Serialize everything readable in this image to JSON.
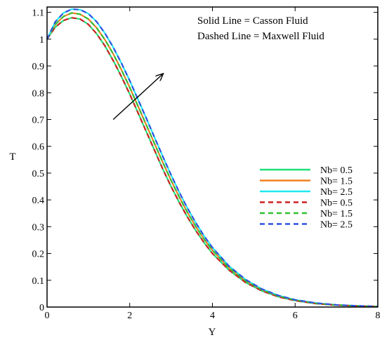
{
  "chart_data": {
    "type": "line",
    "title": "",
    "xlabel": "Y",
    "ylabel": "T",
    "xlim": [
      0,
      8
    ],
    "ylim": [
      0,
      1.12
    ],
    "x_ticks": [
      "0",
      "2",
      "4",
      "6",
      "8"
    ],
    "y_ticks": [
      "0",
      "0.1",
      "0.2",
      "0.3",
      "0.4",
      "0.5",
      "0.6",
      "0.7",
      "0.8",
      "0.9",
      "1",
      "1.1"
    ],
    "grid": false,
    "legend_position": "center-right",
    "annotations": [
      "Solid Line = Casson Fluid",
      "Dashed Line = Maxwell Fluid"
    ],
    "arrow": {
      "from": [
        1.6,
        0.7
      ],
      "to": [
        2.8,
        0.87
      ]
    },
    "x": [
      0,
      0.2,
      0.4,
      0.6,
      0.8,
      1.0,
      1.2,
      1.4,
      1.6,
      1.8,
      2.0,
      2.2,
      2.4,
      2.6,
      2.8,
      3.0,
      3.2,
      3.4,
      3.6,
      3.8,
      4.0,
      4.4,
      4.8,
      5.2,
      5.6,
      6.0,
      6.5,
      7.0,
      7.5,
      8.0
    ],
    "series": [
      {
        "name": "Nb= 0.5",
        "style": "solid",
        "color": "#1ee07a",
        "values": [
          1.0,
          1.045,
          1.07,
          1.08,
          1.075,
          1.055,
          1.02,
          0.975,
          0.92,
          0.86,
          0.795,
          0.725,
          0.655,
          0.585,
          0.515,
          0.45,
          0.39,
          0.335,
          0.285,
          0.24,
          0.2,
          0.138,
          0.092,
          0.06,
          0.038,
          0.024,
          0.013,
          0.007,
          0.004,
          0.002
        ]
      },
      {
        "name": "Nb= 1.5",
        "style": "solid",
        "color": "#f08020",
        "values": [
          1.0,
          1.055,
          1.085,
          1.098,
          1.093,
          1.075,
          1.042,
          0.998,
          0.945,
          0.885,
          0.82,
          0.75,
          0.68,
          0.61,
          0.54,
          0.473,
          0.41,
          0.352,
          0.3,
          0.253,
          0.212,
          0.146,
          0.098,
          0.064,
          0.041,
          0.026,
          0.014,
          0.0075,
          0.004,
          0.002
        ]
      },
      {
        "name": "Nb= 2.5",
        "style": "solid",
        "color": "#20e8f0",
        "values": [
          1.0,
          1.065,
          1.098,
          1.112,
          1.11,
          1.095,
          1.065,
          1.022,
          0.97,
          0.91,
          0.845,
          0.775,
          0.705,
          0.633,
          0.562,
          0.493,
          0.428,
          0.368,
          0.314,
          0.265,
          0.222,
          0.153,
          0.103,
          0.067,
          0.043,
          0.027,
          0.015,
          0.008,
          0.0045,
          0.002
        ]
      },
      {
        "name": "Nb= 0.5",
        "style": "dashed",
        "color": "#d02020",
        "values": [
          1.0,
          1.045,
          1.07,
          1.08,
          1.075,
          1.055,
          1.02,
          0.975,
          0.92,
          0.86,
          0.795,
          0.725,
          0.655,
          0.585,
          0.515,
          0.45,
          0.39,
          0.335,
          0.285,
          0.24,
          0.2,
          0.138,
          0.092,
          0.06,
          0.038,
          0.024,
          0.013,
          0.007,
          0.004,
          0.002
        ]
      },
      {
        "name": "Nb= 1.5",
        "style": "dashed",
        "color": "#30c030",
        "values": [
          1.0,
          1.055,
          1.085,
          1.098,
          1.093,
          1.075,
          1.042,
          0.998,
          0.945,
          0.885,
          0.82,
          0.75,
          0.68,
          0.61,
          0.54,
          0.473,
          0.41,
          0.352,
          0.3,
          0.253,
          0.212,
          0.146,
          0.098,
          0.064,
          0.041,
          0.026,
          0.014,
          0.0075,
          0.004,
          0.002
        ]
      },
      {
        "name": "Nb= 2.5",
        "style": "dashed",
        "color": "#3050e0",
        "values": [
          1.0,
          1.065,
          1.098,
          1.112,
          1.11,
          1.095,
          1.065,
          1.022,
          0.97,
          0.91,
          0.845,
          0.775,
          0.705,
          0.633,
          0.562,
          0.493,
          0.428,
          0.368,
          0.314,
          0.265,
          0.222,
          0.153,
          0.103,
          0.067,
          0.043,
          0.027,
          0.015,
          0.008,
          0.0045,
          0.002
        ]
      }
    ]
  }
}
